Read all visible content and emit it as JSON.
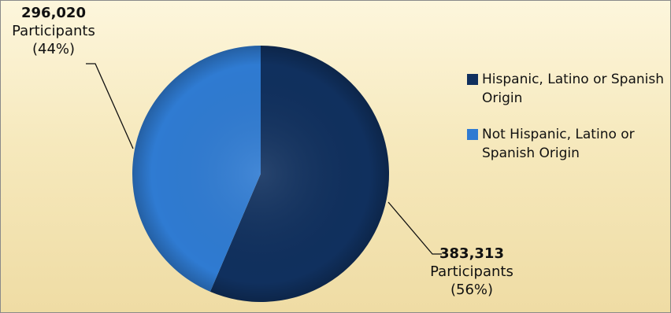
{
  "chart_data": {
    "type": "pie",
    "title": "",
    "slices": [
      {
        "name": "Hispanic, Latino or Spanish Origin",
        "value": 383313,
        "value_label": "383,313",
        "unit": "Participants",
        "percent_label": "(56%)",
        "color": "#10305e"
      },
      {
        "name": "Not Hispanic, Latino or Spanish Origin",
        "value": 296020,
        "value_label": "296,020",
        "unit": "Participants",
        "percent_label": "(44%)",
        "color": "#2f7bd2"
      }
    ],
    "legend_position": "right",
    "colors": {
      "background": "#f6e9bd",
      "frame": "#8a8a8a"
    }
  },
  "legend": {
    "items": [
      {
        "label": "Hispanic, Latino or Spanish Origin",
        "color": "#10305e"
      },
      {
        "label": "Not Hispanic, Latino or Spanish Origin",
        "color": "#2f7bd2"
      }
    ]
  }
}
